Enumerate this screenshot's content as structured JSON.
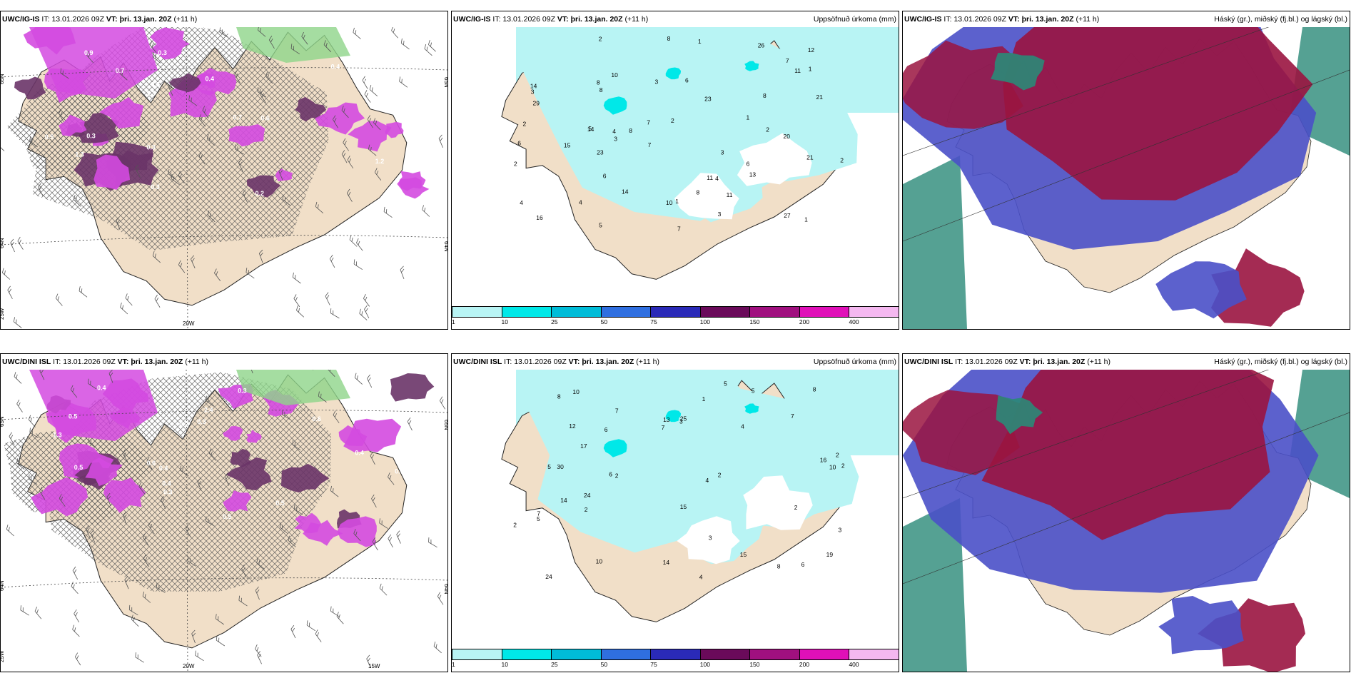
{
  "rows": [
    {
      "model": "UWC/IG-IS",
      "precip_labels": [
        "1",
        "2",
        "11",
        "11",
        "8",
        "3",
        "1",
        "12",
        "13",
        "4",
        "7",
        "5",
        "6",
        "8",
        "6",
        "7",
        "2",
        "21",
        "23",
        "23",
        "26",
        "21",
        "16",
        "14",
        "29",
        "8",
        "4",
        "10",
        "6",
        "15",
        "7",
        "20",
        "14",
        "14",
        "2",
        "3",
        "8",
        "1",
        "7",
        "11",
        "8",
        "6",
        "3",
        "1",
        "2",
        "2",
        "10",
        "8",
        "4",
        "2",
        "5",
        "4",
        "3",
        "1",
        "3",
        "27"
      ],
      "wind_labels": [
        "0.5",
        "0.7",
        "1.2",
        "1.3",
        "0.3",
        "0.4",
        "0.6",
        "0.5",
        "0.3",
        "0.5",
        "0.7",
        "0.4",
        "1.3",
        "0.3",
        "0.5",
        "0.9",
        "0.2",
        "0.3"
      ],
      "axis": [
        "65N",
        "64N",
        "25W",
        "20W",
        "65N",
        "64N"
      ]
    },
    {
      "model": "UWC/DINI ISL",
      "precip_labels": [
        "8",
        "8",
        "3",
        "2",
        "10",
        "5",
        "6",
        "4",
        "7",
        "2",
        "13",
        "15",
        "25",
        "17",
        "24",
        "24",
        "12",
        "16",
        "30",
        "4",
        "10",
        "19",
        "7",
        "5",
        "2",
        "15",
        "2",
        "10",
        "7",
        "7",
        "6",
        "6",
        "2",
        "3",
        "5",
        "2",
        "14",
        "8",
        "3",
        "4",
        "1",
        "2",
        "5",
        "14"
      ],
      "wind_labels": [
        "0.4",
        "0.5",
        "0.3",
        "0.6",
        "0.5",
        "0.2",
        "0.5",
        "0.4",
        "0.3",
        "0.4",
        "2.4",
        "1.3",
        "0.7",
        "0.3",
        "0.5",
        "0.6",
        "0.4"
      ],
      "axis": [
        "65N",
        "64N",
        "25W",
        "20W",
        "15W",
        "65N",
        "64N"
      ]
    }
  ],
  "header": {
    "it_label": "IT:",
    "it_value": "13.01.2026 09Z",
    "vt_label": "VT:",
    "vt_value": "þri. 13.jan. 20Z",
    "lead": "(+11 h)",
    "precip_title": "Uppsöfnuð úrkoma (mm)",
    "cloud_title": "Háský (gr.), miðský (fj.bl.) og lágský (bl.)"
  },
  "colorbar": {
    "ticks": [
      "1",
      "10",
      "25",
      "50",
      "75",
      "100",
      "150",
      "200",
      "400"
    ],
    "colors": [
      "#b8f4f4",
      "#00e8e8",
      "#00bcd8",
      "#2f6fe0",
      "#2a2ab8",
      "#6a0a5a",
      "#a0107f",
      "#e010b8",
      "#f4b8f0"
    ]
  },
  "colors": {
    "land": "#f1dfc8",
    "precip_light": "#b8f4f4",
    "wind_magenta": "#d44ae0",
    "wind_dark": "#6a3468",
    "cloud_high": "#9a1440",
    "cloud_mid": "#4a50c8",
    "cloud_low": "#2a8a78"
  }
}
